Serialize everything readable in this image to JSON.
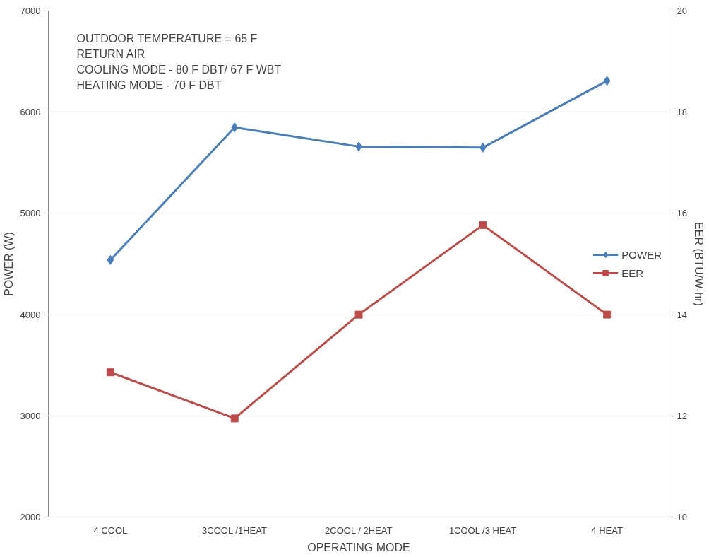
{
  "chart_data": {
    "type": "line",
    "categories": [
      "4 COOL",
      "3COOL /1HEAT",
      "2COOL / 2HEAT",
      "1COOL /3 HEAT",
      "4 HEAT"
    ],
    "series": [
      {
        "name": "POWER",
        "color": "#4a7ebb",
        "marker": "diamond",
        "values": [
          4540,
          5850,
          5660,
          5650,
          6310
        ]
      },
      {
        "name": "EER",
        "color": "#be4b48",
        "marker": "square",
        "axis": "y2",
        "values": [
          12.86,
          11.95,
          14.0,
          15.77,
          14.0
        ]
      }
    ],
    "xlabel": "OPERATING MODE",
    "ylabel": "POWER (W)",
    "y2label": "EER (BTU/W-hr)",
    "ylim": [
      2000,
      7000
    ],
    "yticks": [
      2000,
      3000,
      4000,
      5000,
      6000,
      7000
    ],
    "y2lim": [
      10,
      20
    ],
    "y2ticks": [
      10,
      12,
      14,
      16,
      18,
      20
    ],
    "grid": "y",
    "legend": "right",
    "annotations": [
      "OUTDOOR TEMPERATURE = 65 F",
      "RETURN AIR",
      "COOLING MODE - 80 F DBT/ 67 F WBT",
      "HEATING MODE -  70 F DBT"
    ]
  }
}
